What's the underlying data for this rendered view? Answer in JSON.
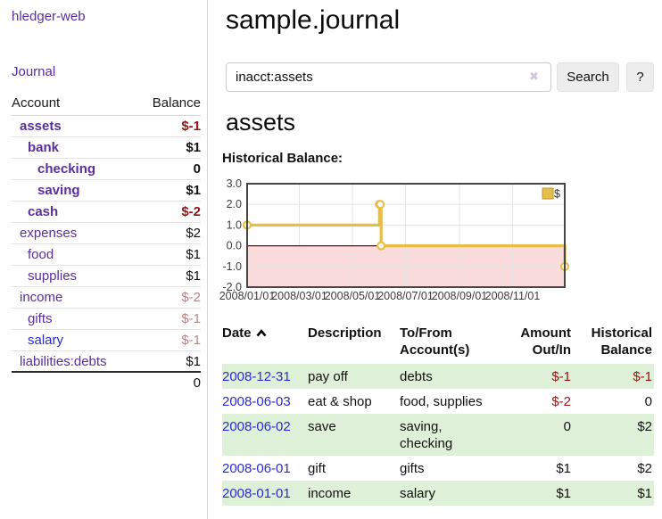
{
  "sidebar": {
    "brand": "hledger-web",
    "nav_journal": "Journal",
    "table": {
      "headers": {
        "account": "Account",
        "balance": "Balance"
      },
      "rows": [
        {
          "account": "assets",
          "balance": "$-1",
          "depth": 1,
          "emphasized": true,
          "balance_tone": "negative-strong"
        },
        {
          "account": "bank",
          "balance": "$1",
          "depth": 2,
          "emphasized": true,
          "balance_tone": "normal"
        },
        {
          "account": "checking",
          "balance": "0",
          "depth": 3,
          "emphasized": true,
          "balance_tone": "normal"
        },
        {
          "account": "saving",
          "balance": "$1",
          "depth": 3,
          "emphasized": true,
          "balance_tone": "normal"
        },
        {
          "account": "cash",
          "balance": "$-2",
          "depth": 2,
          "emphasized": true,
          "balance_tone": "negative-strong"
        },
        {
          "account": "expenses",
          "balance": "$2",
          "depth": 1,
          "emphasized": false,
          "balance_tone": "normal"
        },
        {
          "account": "food",
          "balance": "$1",
          "depth": 2,
          "emphasized": false,
          "balance_tone": "normal"
        },
        {
          "account": "supplies",
          "balance": "$1",
          "depth": 2,
          "emphasized": false,
          "balance_tone": "normal"
        },
        {
          "account": "income",
          "balance": "$-2",
          "depth": 1,
          "emphasized": false,
          "balance_tone": "negative-soft"
        },
        {
          "account": "gifts",
          "balance": "$-1",
          "depth": 2,
          "emphasized": false,
          "balance_tone": "negative-soft"
        },
        {
          "account": "salary",
          "balance": "$-1",
          "depth": 2,
          "emphasized": false,
          "balance_tone": "negative-soft",
          "link_state": "unvisited"
        },
        {
          "account": "liabilities:debts",
          "balance": "$1",
          "depth": 1,
          "emphasized": false,
          "balance_tone": "normal"
        }
      ],
      "total": "0"
    }
  },
  "header": {
    "title": "sample.journal"
  },
  "search": {
    "value": "inacct:assets",
    "clear_icon": "✖",
    "button_label": "Search",
    "help_label": "?"
  },
  "account_page": {
    "heading": "assets",
    "chart_title": "Historical Balance:"
  },
  "chart_data": {
    "type": "line",
    "step": true,
    "title": "Historical Balance:",
    "series": [
      {
        "name": "$",
        "color": "#e8be4a",
        "points": [
          [
            "2008-01-01",
            1
          ],
          [
            "2008-06-01",
            2
          ],
          [
            "2008-06-02",
            2
          ],
          [
            "2008-06-03",
            0
          ],
          [
            "2008-12-31",
            -1
          ]
        ]
      }
    ],
    "x_range": [
      "2008-01-01",
      "2008-12-31"
    ],
    "x_ticks": [
      "2008/01/01",
      "2008/03/01",
      "2008/05/01",
      "2008/07/01",
      "2008/09/01",
      "2008/11/01"
    ],
    "y_ticks": [
      3.0,
      2.0,
      1.0,
      0.0,
      -1.0,
      -2.0
    ],
    "ylim": [
      -2,
      3
    ],
    "grid": true,
    "legend": {
      "label": "$",
      "position": "top-right"
    },
    "negative_region_fill": "#fbdcdc",
    "zero_line_color": "#8b0000"
  },
  "register": {
    "columns": [
      "Date",
      "Description",
      "To/From Account(s)",
      "Amount Out/In",
      "Historical Balance"
    ],
    "sort_column": "Date",
    "sort_direction": "ascending",
    "rows": [
      {
        "date": "2008-12-31",
        "description": "pay off",
        "accounts": "debts",
        "amount": "$-1",
        "balance": "$-1"
      },
      {
        "date": "2008-06-03",
        "description": "eat & shop",
        "accounts": "food, supplies",
        "amount": "$-2",
        "balance": "0"
      },
      {
        "date": "2008-06-02",
        "description": "save",
        "accounts": "saving, checking",
        "amount": "0",
        "balance": "$2"
      },
      {
        "date": "2008-06-01",
        "description": "gift",
        "accounts": "gifts",
        "amount": "$1",
        "balance": "$2"
      },
      {
        "date": "2008-01-01",
        "description": "income",
        "accounts": "salary",
        "amount": "$1",
        "balance": "$1"
      }
    ]
  },
  "colors": {
    "link_purple": "#5b2d9e",
    "link_blue": "#2b2bd0",
    "negative_strong": "#941313",
    "negative_soft": "#c47e7e",
    "row_stripe_green": "#dff0d8",
    "chart_series": "#e8be4a",
    "chart_negative_fill": "#fbdcdc",
    "chart_zero_line": "#8b0000",
    "button_bg": "#ededed"
  }
}
